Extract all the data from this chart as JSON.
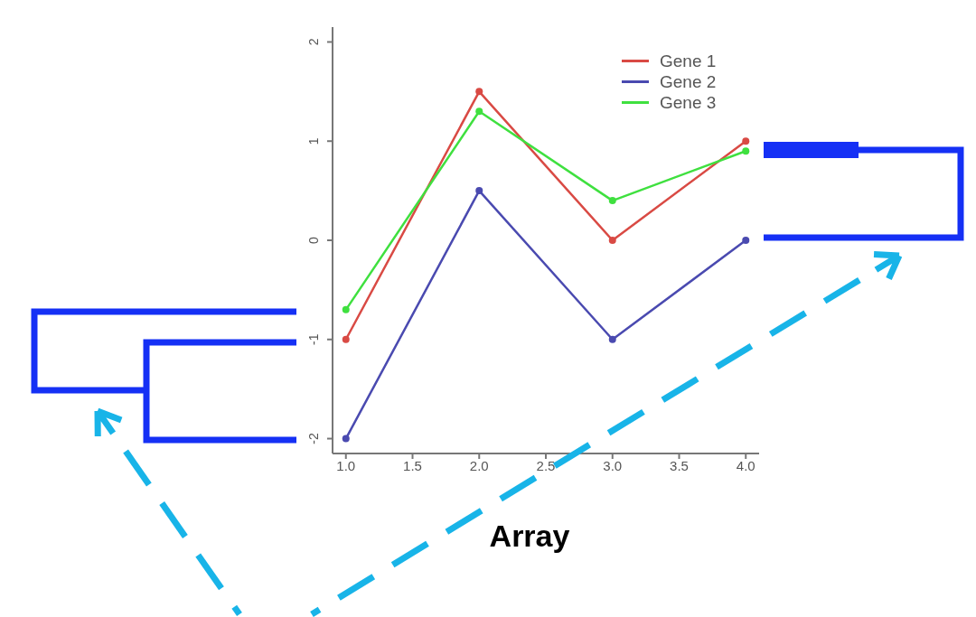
{
  "chart_data": {
    "type": "line",
    "xlabel": "Array",
    "x": [
      1,
      2,
      3,
      4
    ],
    "series": [
      {
        "name": "Gene 1",
        "color": "#d94a44",
        "values": [
          -1,
          1.5,
          0,
          1
        ]
      },
      {
        "name": "Gene 2",
        "color": "#4a4ab0",
        "values": [
          -2,
          0.5,
          -1,
          0
        ]
      },
      {
        "name": "Gene 3",
        "color": "#3fe03f",
        "values": [
          -0.7,
          1.3,
          0.4,
          0.9
        ]
      }
    ],
    "xlim": [
      0.9,
      4.1
    ],
    "xticks": [
      {
        "value": 1,
        "label": "1.0"
      },
      {
        "value": 1.5,
        "label": "1.5"
      },
      {
        "value": 2,
        "label": "2.0"
      },
      {
        "value": 2.5,
        "label": "2.5"
      },
      {
        "value": 3,
        "label": "3.0"
      },
      {
        "value": 3.5,
        "label": "3.5"
      },
      {
        "value": 4,
        "label": "4.0"
      }
    ],
    "ylim": [
      -2.15,
      2.15
    ],
    "yticks": [
      -2,
      -1,
      0,
      1,
      2
    ],
    "legend": "top right",
    "marker": "circle",
    "line_style": "solid",
    "grid": false
  }
}
